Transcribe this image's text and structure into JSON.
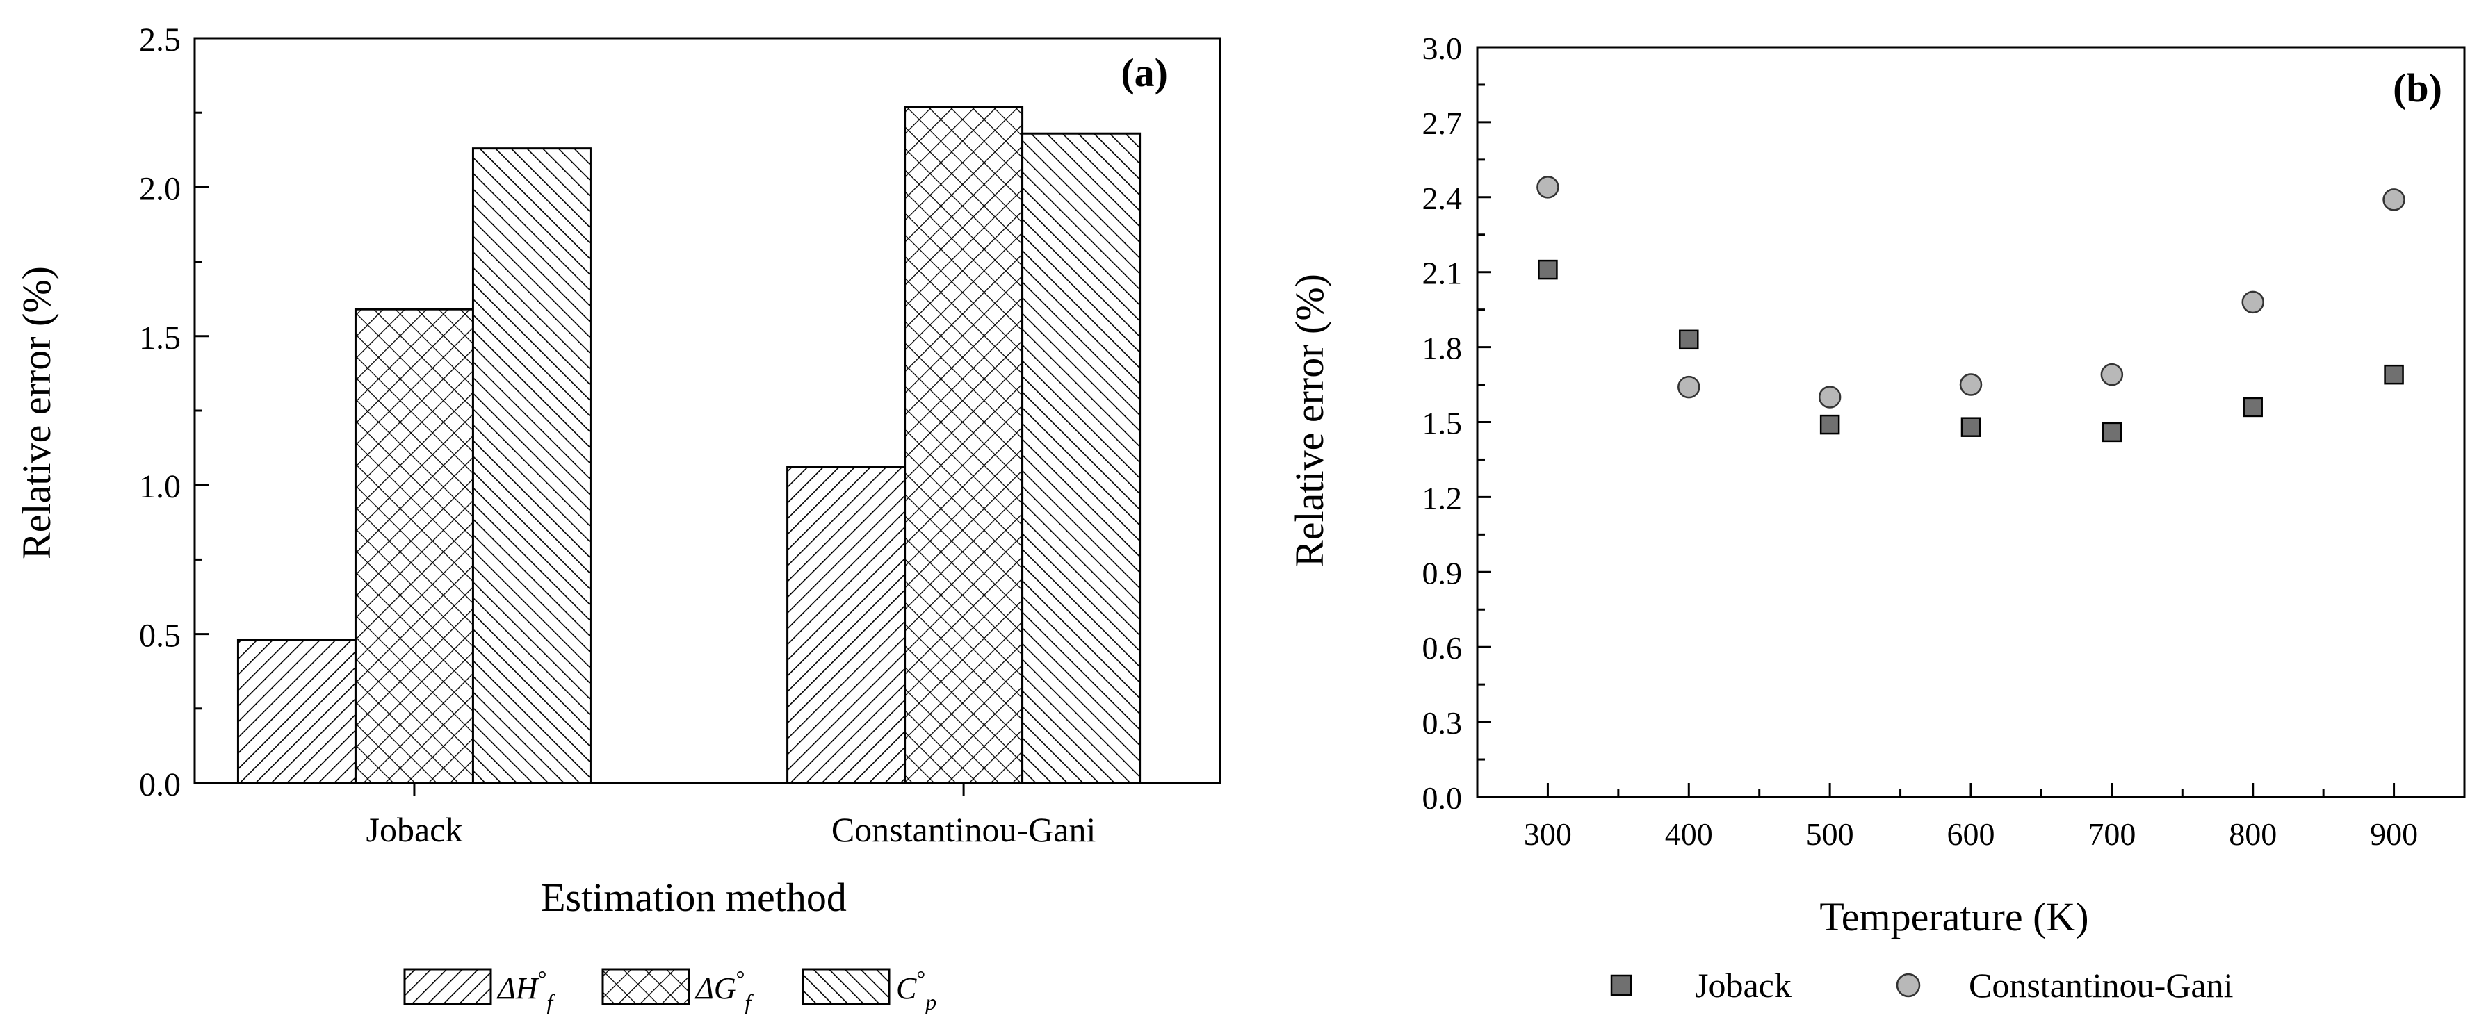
{
  "chart_data": [
    {
      "id": "a",
      "type": "bar",
      "panel_label": "(a)",
      "categories": [
        "Joback",
        "Constantinou-Gani"
      ],
      "series": [
        {
          "name": "ΔH°f",
          "symbol": "ΔH",
          "super": "°",
          "sub": "f",
          "pattern": "diag-right",
          "values": [
            0.48,
            1.06
          ]
        },
        {
          "name": "ΔG°f",
          "symbol": "ΔG",
          "super": "°",
          "sub": "f",
          "pattern": "crosshatch",
          "values": [
            1.59,
            2.27
          ]
        },
        {
          "name": "C°p",
          "symbol": "C",
          "super": "°",
          "sub": "p",
          "pattern": "diag-left",
          "values": [
            2.13,
            2.18
          ]
        }
      ],
      "xlabel": "Estimation method",
      "ylabel": "Relative error (%)",
      "ylim": [
        0,
        2.5
      ],
      "yticks": [
        "0.0",
        "0.5",
        "1.0",
        "1.5",
        "2.0",
        "2.5"
      ],
      "legend_position": "bottom"
    },
    {
      "id": "b",
      "type": "scatter",
      "panel_label": "(b)",
      "series": [
        {
          "name": "Joback",
          "marker": "square",
          "color": "#707070",
          "x": [
            300,
            400,
            500,
            600,
            700,
            800,
            900
          ],
          "y": [
            2.11,
            1.83,
            1.49,
            1.48,
            1.46,
            1.56,
            1.69
          ]
        },
        {
          "name": "Constantinou-Gani",
          "marker": "circle",
          "color": "#b8b8b8",
          "x": [
            300,
            400,
            500,
            600,
            700,
            800,
            900
          ],
          "y": [
            2.44,
            1.64,
            1.6,
            1.65,
            1.69,
            1.98,
            2.39
          ]
        }
      ],
      "xlabel": "Temperature (K)",
      "ylabel": "Relative error (%)",
      "xlim": [
        250,
        950
      ],
      "ylim": [
        0,
        3.0
      ],
      "xticks": [
        "300",
        "400",
        "500",
        "600",
        "700",
        "800",
        "900"
      ],
      "yticks": [
        "0.0",
        "0.3",
        "0.6",
        "0.9",
        "1.2",
        "1.5",
        "1.8",
        "2.1",
        "2.4",
        "2.7",
        "3.0"
      ],
      "legend_position": "bottom"
    }
  ]
}
